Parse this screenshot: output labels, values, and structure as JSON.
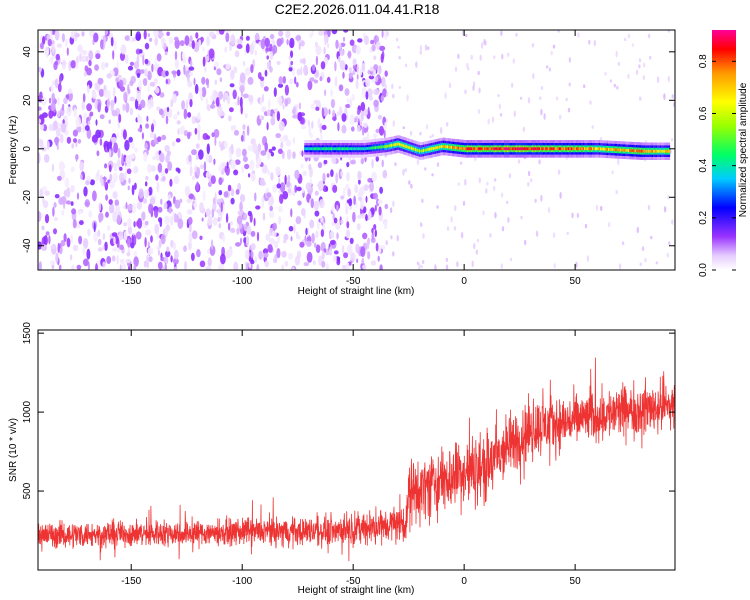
{
  "title": "C2E2.2026.011.04.41.R18",
  "chart_data": [
    {
      "type": "heatmap",
      "xlabel": "Height of straight line (km)",
      "ylabel": "Frequency (Hz)",
      "xlim": [
        -192,
        95
      ],
      "ylim": [
        -50,
        49
      ],
      "xticks": [
        -150,
        -100,
        -50,
        0,
        50
      ],
      "yticks": [
        -40,
        -20,
        0,
        20,
        40
      ],
      "colorbar": {
        "label": "Normalized spectral amplitude",
        "range": [
          0.0,
          0.92
        ],
        "ticks": [
          0.0,
          0.2,
          0.4,
          0.6,
          0.8
        ]
      },
      "regions": [
        {
          "x_range": [
            -192,
            -35
          ],
          "description": "broadband noise, amplitude ~0.1-0.3 across all frequencies"
        },
        {
          "x_range": [
            -35,
            95
          ],
          "frequency_center": 0,
          "band_halfwidth_hz": 3,
          "peak_amplitude": 0.9
        }
      ],
      "ridge": [
        {
          "x": -72,
          "freq": 0,
          "amp": 0.4
        },
        {
          "x": -60,
          "freq": 0,
          "amp": 0.45
        },
        {
          "x": -45,
          "freq": 0,
          "amp": 0.4
        },
        {
          "x": -35,
          "freq": 1,
          "amp": 0.55
        },
        {
          "x": -30,
          "freq": 2,
          "amp": 0.7
        },
        {
          "x": -20,
          "freq": -1,
          "amp": 0.6
        },
        {
          "x": -10,
          "freq": 1,
          "amp": 0.7
        },
        {
          "x": 0,
          "freq": 0,
          "amp": 0.85
        },
        {
          "x": 20,
          "freq": 0,
          "amp": 0.9
        },
        {
          "x": 40,
          "freq": 0,
          "amp": 0.85
        },
        {
          "x": 60,
          "freq": 0,
          "amp": 0.75
        },
        {
          "x": 80,
          "freq": -1,
          "amp": 0.8
        },
        {
          "x": 92,
          "freq": -1,
          "amp": 0.7
        }
      ]
    },
    {
      "type": "line",
      "xlabel": "Height of straight line (km)",
      "ylabel": "SNR (10 * v/v)",
      "xlim": [
        -192,
        95
      ],
      "ylim": [
        0,
        1520
      ],
      "xticks": [
        -150,
        -100,
        -50,
        0,
        50
      ],
      "yticks": [
        500,
        1000,
        1500
      ],
      "color": "#ee3333",
      "series": [
        {
          "x": [
            -192,
            -150,
            -100,
            -60,
            -40,
            -30,
            -26,
            -25,
            -15,
            0,
            10,
            20,
            30,
            40,
            50,
            60,
            70,
            80,
            95
          ],
          "values": [
            220,
            230,
            240,
            250,
            270,
            300,
            300,
            480,
            540,
            620,
            650,
            780,
            900,
            920,
            950,
            980,
            1000,
            1020,
            1050
          ],
          "spread": [
            80,
            80,
            80,
            90,
            100,
            110,
            110,
            200,
            200,
            210,
            220,
            200,
            180,
            170,
            160,
            160,
            160,
            160,
            160
          ]
        }
      ]
    }
  ],
  "colors": {
    "axis": "#000000",
    "snr_line": "#ee3333"
  }
}
